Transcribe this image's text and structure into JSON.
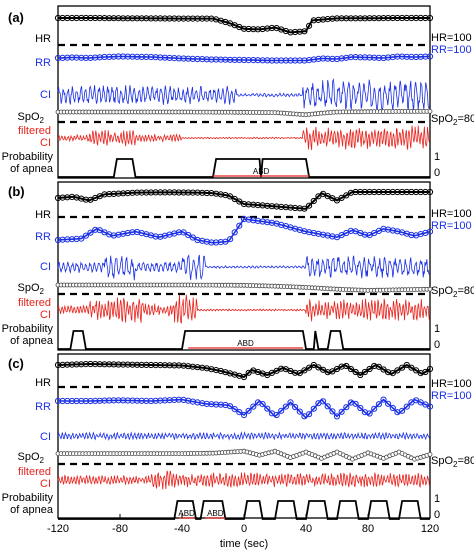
{
  "colors": {
    "hr": "#000000",
    "rr": "#1a2fe6",
    "ci": "#1a2fe6",
    "spo2": "#444444",
    "filtered_ci": "#e8231d",
    "probability": "#000000",
    "abd_bar": "#e8231d",
    "threshold": "#000000"
  },
  "chart_data": {
    "type": "line",
    "xlabel": "time (sec)",
    "xlim": [
      -120,
      120
    ],
    "x_ticks": [
      "-120",
      "-80",
      "-40",
      "0",
      "40",
      "80",
      "120"
    ],
    "row_labels": {
      "hr": "HR",
      "rr": "RR",
      "ci": "CI",
      "spo2_main": "SpO",
      "spo2_sub": "2",
      "filtered_line1": "filtered",
      "filtered_line2": "CI",
      "prob_line1": "Probability",
      "prob_line2": "of apnea"
    },
    "right_labels": {
      "hr_ref": "HR=100",
      "rr_ref": "RR=100",
      "spo2_main": "SpO",
      "spo2_sub": "2",
      "spo2_value": "=80",
      "prob_high": "1",
      "prob_low": "0"
    },
    "panels": [
      {
        "label": "(a)",
        "hr": [
          [
            -120,
            1.0
          ],
          [
            -100,
            1.0
          ],
          [
            -80,
            0.98
          ],
          [
            -60,
            0.97
          ],
          [
            -40,
            0.95
          ],
          [
            -20,
            0.95
          ],
          [
            -10,
            0.6
          ],
          [
            0,
            0.1
          ],
          [
            10,
            0.05
          ],
          [
            20,
            0.2
          ],
          [
            30,
            -0.2
          ],
          [
            40,
            -0.1
          ],
          [
            44,
            0.8
          ],
          [
            60,
            0.97
          ],
          [
            80,
            0.98
          ],
          [
            100,
            1.0
          ],
          [
            120,
            1.0
          ]
        ],
        "rr": [
          [
            -120,
            0.6
          ],
          [
            -110,
            0.65
          ],
          [
            -100,
            0.6
          ],
          [
            -90,
            0.7
          ],
          [
            -80,
            0.75
          ],
          [
            -60,
            0.7
          ],
          [
            -40,
            0.55
          ],
          [
            -20,
            0.45
          ],
          [
            0,
            0.4
          ],
          [
            20,
            0.35
          ],
          [
            40,
            0.35
          ],
          [
            50,
            0.55
          ],
          [
            60,
            0.5
          ],
          [
            70,
            0.7
          ],
          [
            80,
            0.65
          ],
          [
            90,
            0.6
          ],
          [
            100,
            0.75
          ],
          [
            110,
            0.7
          ],
          [
            120,
            0.75
          ]
        ],
        "ci_segments": [
          {
            "t": [
              -120,
              -5
            ],
            "amplitude": 0.6,
            "cycles_per_sec": 0.35
          },
          {
            "t": [
              -5,
              5
            ],
            "amplitude": 0.1,
            "cycles_per_sec": 0.4
          },
          {
            "t": [
              5,
              38
            ],
            "amplitude": 0.12,
            "cycles_per_sec": 0.4
          },
          {
            "t": [
              38,
              120
            ],
            "amplitude": 0.95,
            "cycles_per_sec": 0.3
          }
        ],
        "spo2": [
          [
            -120,
            0.5
          ],
          [
            -80,
            0.5
          ],
          [
            -40,
            0.5
          ],
          [
            0,
            0.45
          ],
          [
            20,
            0.4
          ],
          [
            40,
            0.05
          ],
          [
            50,
            0.3
          ],
          [
            60,
            0.5
          ],
          [
            80,
            0.55
          ],
          [
            100,
            0.6
          ],
          [
            120,
            0.6
          ]
        ],
        "filtered_segments": [
          {
            "t": [
              -120,
              -100
            ],
            "amplitude": 0.25,
            "cycles_per_sec": 0.5
          },
          {
            "t": [
              -100,
              -70
            ],
            "amplitude": 0.6,
            "cycles_per_sec": 0.5
          },
          {
            "t": [
              -70,
              -40
            ],
            "amplitude": 0.3,
            "cycles_per_sec": 0.5
          },
          {
            "t": [
              -40,
              38
            ],
            "amplitude": 0.06,
            "cycles_per_sec": 0.5
          },
          {
            "t": [
              38,
              120
            ],
            "amplitude": 0.9,
            "cycles_per_sec": 0.5
          }
        ],
        "probability": [
          [
            -120,
            0
          ],
          [
            -84,
            0
          ],
          [
            -82,
            1
          ],
          [
            -72,
            1
          ],
          [
            -70,
            0
          ],
          [
            -20,
            0
          ],
          [
            -18,
            1
          ],
          [
            10,
            1
          ],
          [
            11,
            0
          ],
          [
            12,
            1
          ],
          [
            40,
            1
          ],
          [
            42,
            0
          ],
          [
            120,
            0
          ]
        ],
        "abd": [
          {
            "label": "ABD",
            "t": [
              -20,
              42
            ]
          }
        ]
      },
      {
        "label": "(b)",
        "hr": [
          [
            -120,
            0.5
          ],
          [
            -110,
            0.6
          ],
          [
            -100,
            0.3
          ],
          [
            -90,
            0.8
          ],
          [
            -70,
            0.95
          ],
          [
            -50,
            0.97
          ],
          [
            -30,
            0.95
          ],
          [
            -20,
            0.9
          ],
          [
            -10,
            0.7
          ],
          [
            0,
            0.0
          ],
          [
            20,
            -0.2
          ],
          [
            40,
            -0.4
          ],
          [
            50,
            0.9
          ],
          [
            60,
            0.3
          ],
          [
            70,
            1.0
          ],
          [
            90,
            1.0
          ],
          [
            110,
            1.0
          ],
          [
            120,
            1.0
          ]
        ],
        "rr": [
          [
            -120,
            0.0
          ],
          [
            -105,
            0.1
          ],
          [
            -95,
            0.8
          ],
          [
            -85,
            0.3
          ],
          [
            -70,
            0.6
          ],
          [
            -55,
            0.2
          ],
          [
            -40,
            0.6
          ],
          [
            -30,
            0.0
          ],
          [
            -20,
            -0.2
          ],
          [
            -10,
            -0.1
          ],
          [
            0,
            1.5
          ],
          [
            20,
            1.2
          ],
          [
            40,
            0.6
          ],
          [
            50,
            0.4
          ],
          [
            60,
            0.2
          ],
          [
            70,
            0.7
          ],
          [
            80,
            0.3
          ],
          [
            90,
            0.8
          ],
          [
            100,
            0.6
          ],
          [
            110,
            0.3
          ],
          [
            120,
            0.6
          ]
        ],
        "ci_segments": [
          {
            "t": [
              -120,
              -90
            ],
            "amplitude": 0.35,
            "cycles_per_sec": 0.35
          },
          {
            "t": [
              -90,
              -70
            ],
            "amplitude": 0.8,
            "cycles_per_sec": 0.3
          },
          {
            "t": [
              -70,
              -40
            ],
            "amplitude": 0.35,
            "cycles_per_sec": 0.35
          },
          {
            "t": [
              -40,
              -25
            ],
            "amplitude": 0.9,
            "cycles_per_sec": 0.3
          },
          {
            "t": [
              -25,
              40
            ],
            "amplitude": 0.08,
            "cycles_per_sec": 0.4
          },
          {
            "t": [
              40,
              120
            ],
            "amplitude": 0.7,
            "cycles_per_sec": 0.3
          }
        ],
        "spo2": [
          [
            -120,
            0.5
          ],
          [
            -80,
            0.5
          ],
          [
            -40,
            0.5
          ],
          [
            0,
            0.45
          ],
          [
            20,
            0.3
          ],
          [
            40,
            0.1
          ],
          [
            60,
            -0.2
          ],
          [
            80,
            -0.4
          ],
          [
            100,
            -0.3
          ],
          [
            120,
            -0.2
          ]
        ],
        "filtered_segments": [
          {
            "t": [
              -120,
              -100
            ],
            "amplitude": 0.3,
            "cycles_per_sec": 0.5
          },
          {
            "t": [
              -100,
              -65
            ],
            "amplitude": 0.8,
            "cycles_per_sec": 0.5
          },
          {
            "t": [
              -65,
              -45
            ],
            "amplitude": 0.4,
            "cycles_per_sec": 0.5
          },
          {
            "t": [
              -45,
              -30
            ],
            "amplitude": 1.0,
            "cycles_per_sec": 0.45
          },
          {
            "t": [
              -30,
              40
            ],
            "amplitude": 0.06,
            "cycles_per_sec": 0.5
          },
          {
            "t": [
              40,
              120
            ],
            "amplitude": 0.7,
            "cycles_per_sec": 0.5
          }
        ],
        "probability": [
          [
            -120,
            0
          ],
          [
            -112,
            0
          ],
          [
            -110,
            1
          ],
          [
            -104,
            1
          ],
          [
            -102,
            0
          ],
          [
            -40,
            0
          ],
          [
            -38,
            1
          ],
          [
            38,
            1
          ],
          [
            40,
            0
          ],
          [
            45,
            0
          ],
          [
            46,
            1
          ],
          [
            48,
            0
          ],
          [
            54,
            0
          ],
          [
            56,
            1
          ],
          [
            62,
            1
          ],
          [
            64,
            0
          ],
          [
            120,
            0
          ]
        ],
        "abd": [
          {
            "label": "ABD",
            "t": [
              -36,
              38
            ]
          }
        ]
      },
      {
        "label": "(c)",
        "hr": [
          [
            -120,
            0.9
          ],
          [
            -100,
            1.0
          ],
          [
            -80,
            0.95
          ],
          [
            -60,
            0.9
          ],
          [
            -40,
            0.85
          ],
          [
            -25,
            0.6
          ],
          [
            -15,
            0.3
          ],
          [
            0,
            -0.3
          ],
          [
            5,
            0.4
          ],
          [
            15,
            -0.1
          ],
          [
            25,
            0.6
          ],
          [
            35,
            0.0
          ],
          [
            45,
            0.9
          ],
          [
            55,
            0.1
          ],
          [
            65,
            0.9
          ],
          [
            75,
            -0.1
          ],
          [
            85,
            0.9
          ],
          [
            95,
            0.0
          ],
          [
            105,
            0.9
          ],
          [
            115,
            0.0
          ],
          [
            120,
            0.5
          ]
        ],
        "rr": [
          [
            -120,
            0.5
          ],
          [
            -100,
            0.5
          ],
          [
            -80,
            0.55
          ],
          [
            -60,
            0.5
          ],
          [
            -40,
            0.6
          ],
          [
            -25,
            0.3
          ],
          [
            -10,
            0.2
          ],
          [
            0,
            -0.5
          ],
          [
            10,
            0.5
          ],
          [
            20,
            -0.6
          ],
          [
            30,
            0.4
          ],
          [
            40,
            -0.7
          ],
          [
            50,
            0.6
          ],
          [
            60,
            -0.6
          ],
          [
            70,
            0.5
          ],
          [
            80,
            -0.5
          ],
          [
            90,
            0.6
          ],
          [
            100,
            -0.4
          ],
          [
            110,
            0.6
          ],
          [
            120,
            0.1
          ]
        ],
        "ci_segments": [
          {
            "t": [
              -120,
              120
            ],
            "amplitude": 0.3,
            "cycles_per_sec": 0.45
          }
        ],
        "spo2": [
          [
            -120,
            0.3
          ],
          [
            -80,
            0.3
          ],
          [
            -40,
            0.3
          ],
          [
            -20,
            0.35
          ],
          [
            0,
            0.6
          ],
          [
            10,
            0.1
          ],
          [
            20,
            0.6
          ],
          [
            30,
            -0.2
          ],
          [
            40,
            0.5
          ],
          [
            50,
            -0.3
          ],
          [
            60,
            0.5
          ],
          [
            70,
            -0.4
          ],
          [
            80,
            0.4
          ],
          [
            90,
            -0.3
          ],
          [
            100,
            0.5
          ],
          [
            110,
            -0.4
          ],
          [
            120,
            0.2
          ]
        ],
        "filtered_segments": [
          {
            "t": [
              -120,
              -60
            ],
            "amplitude": 0.35,
            "cycles_per_sec": 0.5
          },
          {
            "t": [
              -60,
              -40
            ],
            "amplitude": 0.7,
            "cycles_per_sec": 0.5
          },
          {
            "t": [
              -40,
              120
            ],
            "amplitude": 0.55,
            "cycles_per_sec": 0.5
          }
        ],
        "probability": [
          [
            -120,
            0
          ],
          [
            -45,
            0
          ],
          [
            -43,
            1
          ],
          [
            -33,
            1
          ],
          [
            -31,
            0
          ],
          [
            -28,
            0
          ],
          [
            -26,
            1
          ],
          [
            -14,
            1
          ],
          [
            -12,
            0
          ],
          [
            0,
            0
          ],
          [
            2,
            1
          ],
          [
            10,
            1
          ],
          [
            12,
            0
          ],
          [
            20,
            0
          ],
          [
            22,
            1
          ],
          [
            32,
            1
          ],
          [
            34,
            0
          ],
          [
            40,
            0
          ],
          [
            42,
            1
          ],
          [
            52,
            1
          ],
          [
            54,
            0
          ],
          [
            60,
            0
          ],
          [
            62,
            1
          ],
          [
            72,
            1
          ],
          [
            74,
            0
          ],
          [
            80,
            0
          ],
          [
            82,
            1
          ],
          [
            92,
            1
          ],
          [
            94,
            0
          ],
          [
            100,
            0
          ],
          [
            102,
            1
          ],
          [
            112,
            1
          ],
          [
            114,
            0
          ],
          [
            120,
            0
          ]
        ],
        "abd": [
          {
            "label": "ABD",
            "t": [
              -42,
              -32
            ]
          },
          {
            "label": "ABD",
            "t": [
              -25,
              -12
            ]
          }
        ]
      }
    ]
  }
}
